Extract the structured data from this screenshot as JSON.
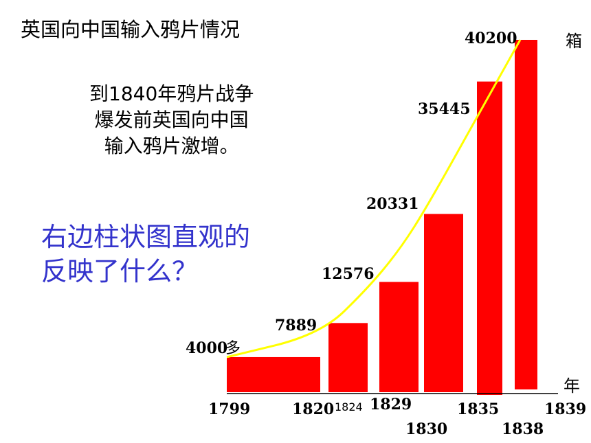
{
  "title": "英国向中国输入鸦片情况",
  "note_lines": [
    "到1840年鸦片战争",
    "爆发前英国向中国",
    "输入鸦片激增。"
  ],
  "question_lines": [
    "右边柱状图直观的",
    "反映了什么？"
  ],
  "colors": {
    "bar": "#ff0000",
    "trend_line": "#ffff00",
    "question_text": "#3333cc",
    "axis": "#000000"
  },
  "chart_data": {
    "type": "bar",
    "title": "英国向中国输入鸦片情况",
    "y_unit": "箱",
    "x_unit": "年",
    "ylim": [
      0,
      42000
    ],
    "bars": [
      {
        "start": "1799",
        "end": "1820",
        "value": 4000,
        "label": "4000多"
      },
      {
        "start": "1824",
        "end": "1829",
        "value": 7889,
        "label": "7889"
      },
      {
        "start": "1829",
        "end": "1830",
        "value": 12576,
        "label": "12576"
      },
      {
        "start": "1830",
        "end": "1835",
        "value": 20331,
        "label": "20331"
      },
      {
        "start": "1835",
        "end": "1838",
        "value": 35445,
        "label": "35445"
      },
      {
        "start": "1838",
        "end": "1839",
        "value": 40200,
        "label": "40200"
      }
    ],
    "tick_labels": [
      "1799",
      "1820",
      "1824",
      "1829",
      "1830",
      "1835",
      "1838",
      "1839"
    ],
    "trend_line": true,
    "grid": false,
    "legend": "none"
  }
}
